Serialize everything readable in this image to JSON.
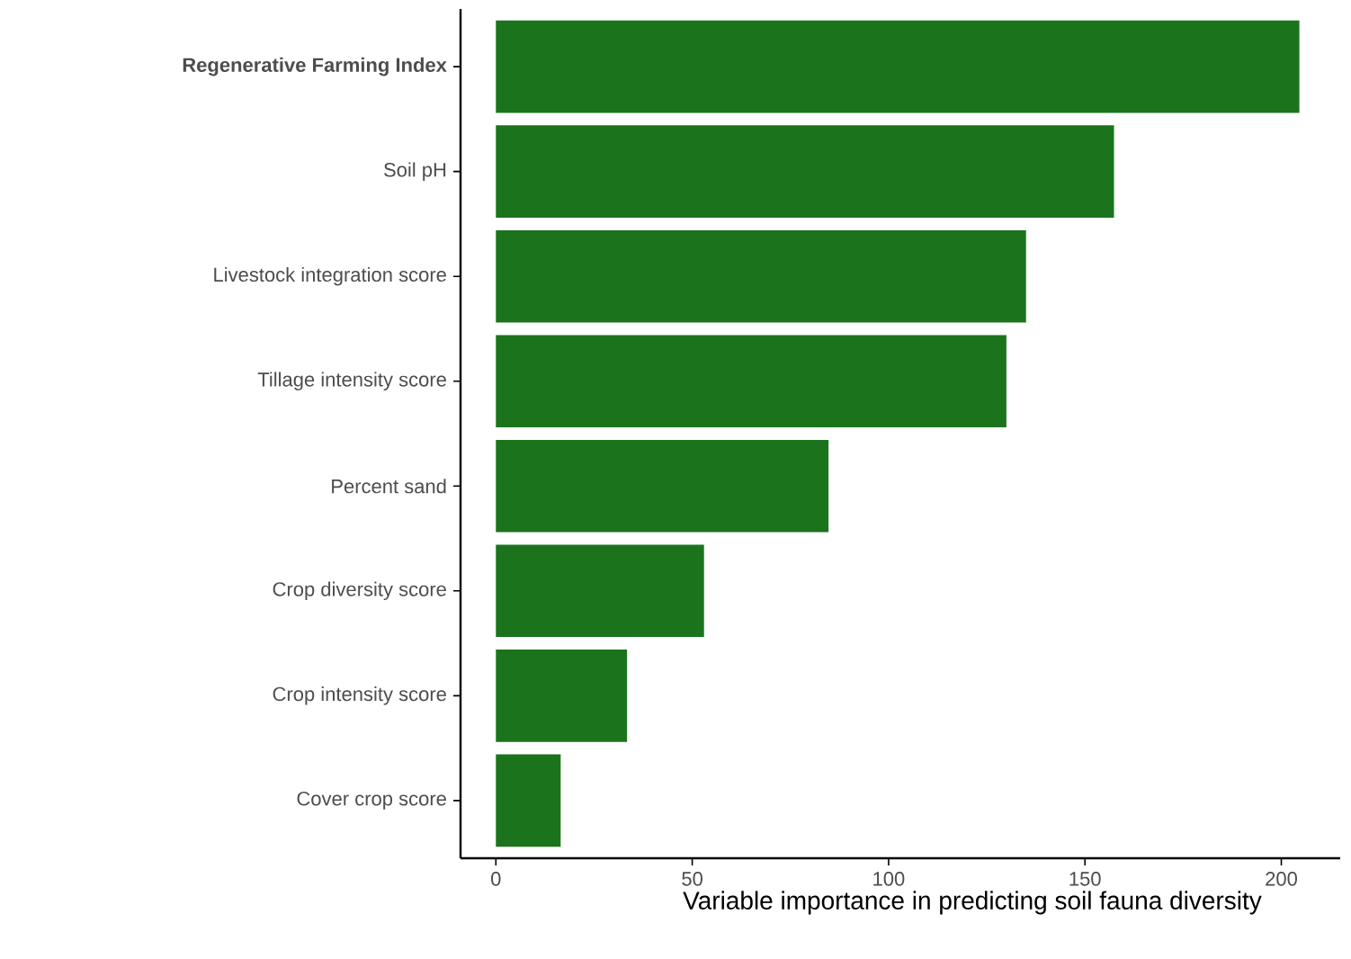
{
  "chart_data": {
    "type": "bar",
    "orientation": "horizontal",
    "xlabel": "Variable importance in predicting soil fauna diversity",
    "categories": [
      "**Regenerative Farming Index**",
      "Soil pH",
      "Livestock integration score",
      "Tillage intensity score",
      "Percent sand",
      "Crop diversity score",
      "Crop intensity score",
      "Cover crop score"
    ],
    "values": [
      204.6,
      157.4,
      135,
      130,
      84.7,
      53,
      33.4,
      16.5
    ],
    "color": "#1b741c",
    "xlim": [
      -9,
      215
    ],
    "xticks": [
      0,
      50,
      100,
      150,
      200
    ],
    "grid": false
  }
}
